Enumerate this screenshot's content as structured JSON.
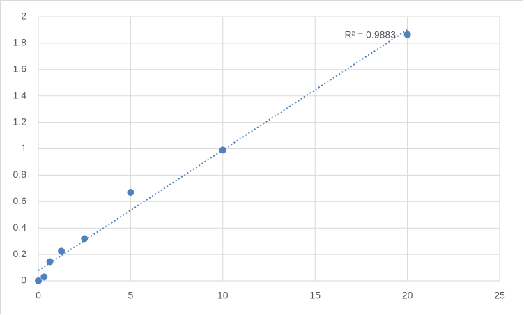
{
  "chart_data": {
    "type": "scatter",
    "x": [
      0,
      0.3125,
      0.625,
      1.25,
      2.5,
      5,
      10,
      20
    ],
    "values": [
      0,
      0.03,
      0.145,
      0.225,
      0.32,
      0.67,
      0.99,
      1.865
    ],
    "color": "#4f81bd",
    "trendline": "linear",
    "annotation": "R² = 0.9883",
    "xlim": [
      0,
      25
    ],
    "xticks": [
      0,
      5,
      10,
      15,
      20,
      25
    ],
    "ylim": [
      0,
      2
    ],
    "yticks": [
      0,
      0.2,
      0.4,
      0.6,
      0.8,
      1,
      1.2,
      1.4,
      1.6,
      1.8,
      2
    ],
    "grid": true
  }
}
